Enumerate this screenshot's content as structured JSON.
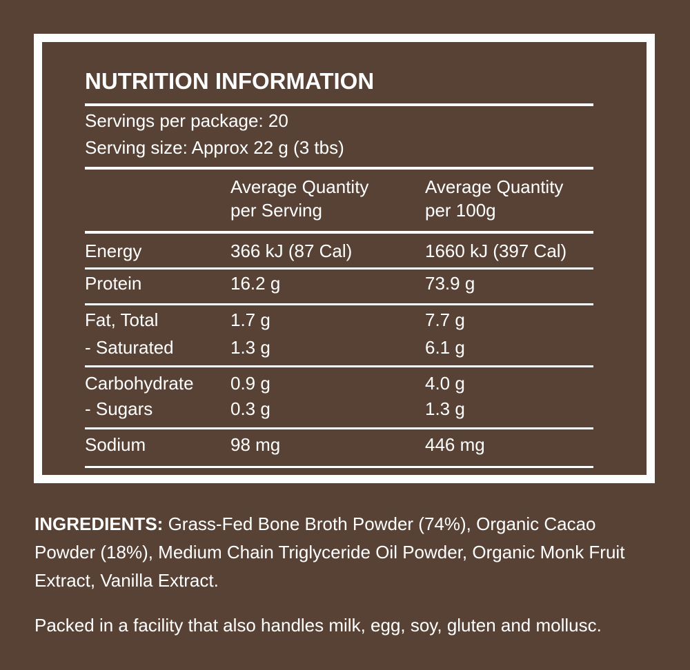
{
  "panel": {
    "title": "NUTRITION INFORMATION",
    "servings": [
      "Servings per package: 20",
      "Serving size: Approx 22 g (3 tbs)"
    ],
    "header": [
      [
        "Average Quantity",
        "per Serving"
      ],
      [
        "Average Quantity",
        "per 100g"
      ]
    ],
    "groups": [
      [
        [
          "Energy",
          "366 kJ (87 Cal)",
          "1660 kJ (397 Cal)"
        ]
      ],
      [
        [
          "Protein",
          "16.2 g",
          "73.9 g"
        ]
      ],
      [
        [
          "Fat, Total",
          "1.7 g",
          "7.7 g"
        ],
        [
          "- Saturated",
          "1.3 g",
          "6.1 g"
        ]
      ],
      [
        [
          "Carbohydrate",
          "0.9 g",
          "4.0 g"
        ],
        [
          "- Sugars",
          "0.3 g",
          "1.3 g"
        ]
      ],
      [
        [
          "Sodium",
          "98 mg",
          "446 mg"
        ]
      ]
    ]
  },
  "ingredients": {
    "label": "INGREDIENTS:",
    "text": "Grass-Fed Bone Broth Powder (74%), Organic Cacao Powder (18%), Medium Chain Triglyceride Oil Powder, Organic Monk Fruit Extract, Vanilla Extract."
  },
  "allergen_note": "Packed in a facility that also handles milk, egg, soy, gluten and mollusc."
}
